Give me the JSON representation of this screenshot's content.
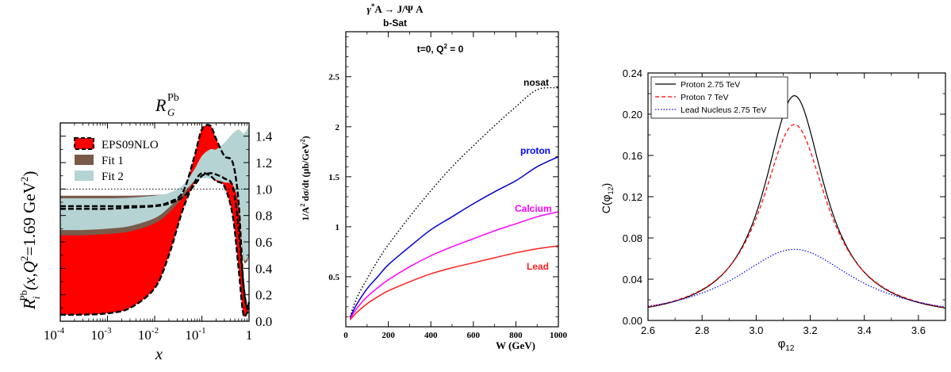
{
  "chart_data": [
    {
      "type": "area",
      "title": "R_G^Pb",
      "title_main": "R",
      "title_sub": "G",
      "title_sup": "Pb",
      "xlabel": "x",
      "ylabel": "R_i^Pb(x,Q^2=1.69 GeV^2)",
      "ylabel_parts": {
        "r": "R",
        "sub": "i",
        "sup": "Pb",
        "args": "(x,Q",
        "exp": "2",
        "eq": "=1.69 GeV",
        "exp2": "2",
        "close": ")"
      },
      "x_scale": "log",
      "xlim": [
        0.0001,
        1
      ],
      "ylim": [
        0,
        1.5
      ],
      "x_ticks": [
        {
          "base": "10",
          "exp": "-4",
          "value": 0.0001
        },
        {
          "base": "10",
          "exp": "-3",
          "value": 0.001
        },
        {
          "base": "10",
          "exp": "-2",
          "value": 0.01
        },
        {
          "base": "10",
          "exp": "-1",
          "value": 0.1
        },
        {
          "base": "1",
          "exp": "",
          "value": 1
        }
      ],
      "y_ticks": [
        "0.0",
        "0.2",
        "0.4",
        "0.6",
        "0.8",
        "1.0",
        "1.2",
        "1.4"
      ],
      "y_tick_values": [
        0,
        0.2,
        0.4,
        0.6,
        0.8,
        1.0,
        1.2,
        1.4
      ],
      "reference_line": 1.0,
      "legend": [
        "EPS09NLO",
        "Fit 1",
        "Fit 2"
      ],
      "legend_placement": "top-left",
      "x": [
        0.0001,
        0.0003,
        0.001,
        0.003,
        0.01,
        0.02,
        0.04,
        0.07,
        0.1,
        0.15,
        0.2,
        0.3,
        0.45,
        0.6,
        0.75,
        0.9,
        1.0
      ],
      "series": [
        {
          "name": "EPS09NLO",
          "color": "#ff0000",
          "upper": [
            0.87,
            0.87,
            0.87,
            0.87,
            0.875,
            0.9,
            0.98,
            1.25,
            1.45,
            1.48,
            1.38,
            1.25,
            1.2,
            0.9,
            0.3,
            0.1,
            0.15
          ],
          "lower": [
            0.05,
            0.05,
            0.06,
            0.1,
            0.25,
            0.5,
            0.85,
            1.05,
            1.12,
            1.1,
            1.06,
            1.02,
            0.8,
            0.4,
            0.06,
            0.06,
            0.1
          ]
        },
        {
          "name": "Fit 1",
          "color": "#7a5a4a",
          "upper": [
            0.95,
            0.95,
            0.95,
            0.95,
            0.955,
            0.965,
            1.0,
            1.08,
            1.12,
            1.13,
            1.12,
            1.1,
            1.09,
            1.05,
            0.95,
            0.92,
            0.92
          ],
          "lower": [
            0.65,
            0.65,
            0.66,
            0.68,
            0.74,
            0.82,
            0.94,
            1.06,
            1.09,
            1.09,
            1.08,
            1.06,
            1.05,
            0.85,
            0.48,
            0.45,
            0.5
          ]
        },
        {
          "name": "Fit 2",
          "color": "#b5d3d3",
          "upper": [
            0.93,
            0.93,
            0.93,
            0.935,
            0.95,
            0.97,
            1.03,
            1.15,
            1.25,
            1.3,
            1.3,
            1.35,
            1.42,
            1.45,
            1.42,
            1.45,
            1.48
          ],
          "lower": [
            0.69,
            0.69,
            0.7,
            0.72,
            0.78,
            0.86,
            0.97,
            1.06,
            1.08,
            1.08,
            1.07,
            1.05,
            1.03,
            0.88,
            0.5,
            0.47,
            0.52
          ]
        }
      ],
      "eps_upper_dashed": [
        0.87,
        0.87,
        0.87,
        0.87,
        0.875,
        0.9,
        0.98,
        1.25,
        1.45,
        1.48,
        1.38,
        1.25,
        1.2,
        0.9,
        0.3,
        0.1,
        0.15
      ],
      "eps_central_dashed": [
        0.85,
        0.85,
        0.85,
        0.86,
        0.87,
        0.89,
        0.94,
        1.03,
        1.1,
        1.12,
        1.11,
        1.08,
        1.02,
        0.7,
        0.3,
        0.1,
        0.12
      ],
      "eps_lower_dashed": [
        0.05,
        0.05,
        0.06,
        0.1,
        0.25,
        0.5,
        0.85,
        1.05,
        1.12,
        1.1,
        1.06,
        1.02,
        0.8,
        0.4,
        0.06,
        0.06,
        0.1
      ]
    },
    {
      "type": "line",
      "title": "γ*A → J/Ψ A",
      "title_parts": {
        "gamma": "γ",
        "star": "*",
        "rest": "A  →  J/Ψ A"
      },
      "subtitle": "b-Sat",
      "annotation": "t=0,  Q² = 0",
      "annotation_parts": {
        "t": "t=0,  Q",
        "exp": "2",
        "rest": " = 0"
      },
      "xlabel": "W  (GeV)",
      "ylabel": "1/A² dσ/dt  (μb/GeV²)",
      "ylabel_parts": {
        "a": "1/A",
        "e1": "2",
        "b": " dσ/dt  (μb/GeV",
        "e2": "2",
        "c": ")"
      },
      "xlim": [
        0,
        1000
      ],
      "ylim": [
        0,
        2.95
      ],
      "x_ticks": [
        "0",
        "200",
        "400",
        "600",
        "800",
        "1000"
      ],
      "x_tick_values": [
        0,
        200,
        400,
        600,
        800,
        1000
      ],
      "y_ticks": [
        "0.5",
        "1",
        "1.5",
        "2",
        "2.5"
      ],
      "y_tick_values": [
        0.5,
        1,
        1.5,
        2,
        2.5
      ],
      "x": [
        20,
        50,
        100,
        150,
        200,
        300,
        400,
        500,
        600,
        700,
        800,
        900,
        1000
      ],
      "series": [
        {
          "name": "nosat",
          "label_color": "#000000",
          "color": "#000000",
          "dash": "dot",
          "values": [
            0.1,
            0.28,
            0.48,
            0.66,
            0.82,
            1.1,
            1.36,
            1.6,
            1.81,
            2.01,
            2.2,
            2.37,
            2.39
          ]
        },
        {
          "name": "proton",
          "label_color": "#0000ff",
          "color": "#0000cc",
          "dash": "solid",
          "values": [
            0.09,
            0.22,
            0.38,
            0.5,
            0.62,
            0.8,
            0.97,
            1.1,
            1.23,
            1.35,
            1.46,
            1.6,
            1.7
          ]
        },
        {
          "name": "Calcium",
          "label_color": "#ff00ff",
          "color": "#ff00ff",
          "dash": "solid",
          "values": [
            0.08,
            0.18,
            0.3,
            0.39,
            0.47,
            0.6,
            0.71,
            0.8,
            0.88,
            0.96,
            1.03,
            1.1,
            1.15
          ]
        },
        {
          "name": "Lead",
          "label_color": "#ff2020",
          "color": "#ff2020",
          "dash": "solid",
          "values": [
            0.07,
            0.14,
            0.23,
            0.3,
            0.36,
            0.45,
            0.53,
            0.59,
            0.64,
            0.69,
            0.74,
            0.78,
            0.81
          ]
        }
      ]
    },
    {
      "type": "line",
      "xlabel": "φ12",
      "xlabel_parts": {
        "phi": "φ",
        "sub": "12"
      },
      "ylabel": "C(φ12)",
      "ylabel_parts": {
        "c": "C(φ",
        "sub": "12",
        "close": ")"
      },
      "xlim": [
        2.6,
        3.7
      ],
      "ylim": [
        0,
        0.24
      ],
      "x_ticks": [
        "2.6",
        "2.8",
        "3.0",
        "3.2",
        "3.4",
        "3.6"
      ],
      "x_tick_values": [
        2.6,
        2.8,
        3.0,
        3.2,
        3.4,
        3.6
      ],
      "y_ticks": [
        "0.00",
        "0.04",
        "0.08",
        "0.12",
        "0.16",
        "0.20",
        "0.24"
      ],
      "y_tick_values": [
        0,
        0.04,
        0.08,
        0.12,
        0.16,
        0.2,
        0.24
      ],
      "legend_placement": "top-left",
      "peak": 3.1416,
      "series": [
        {
          "name": "Proton 2.75 TeV",
          "color": "#000000",
          "dash": "solid",
          "amplitude": 0.218,
          "width": 0.135
        },
        {
          "name": "Proton 7 TeV",
          "color": "#ff0000",
          "dash": "dash",
          "amplitude": 0.19,
          "width": 0.148
        },
        {
          "name": "Lead Nucleus 2.75 TeV",
          "color": "#0000ff",
          "dash": "dot",
          "amplitude": 0.069,
          "width": 0.27
        }
      ]
    }
  ]
}
